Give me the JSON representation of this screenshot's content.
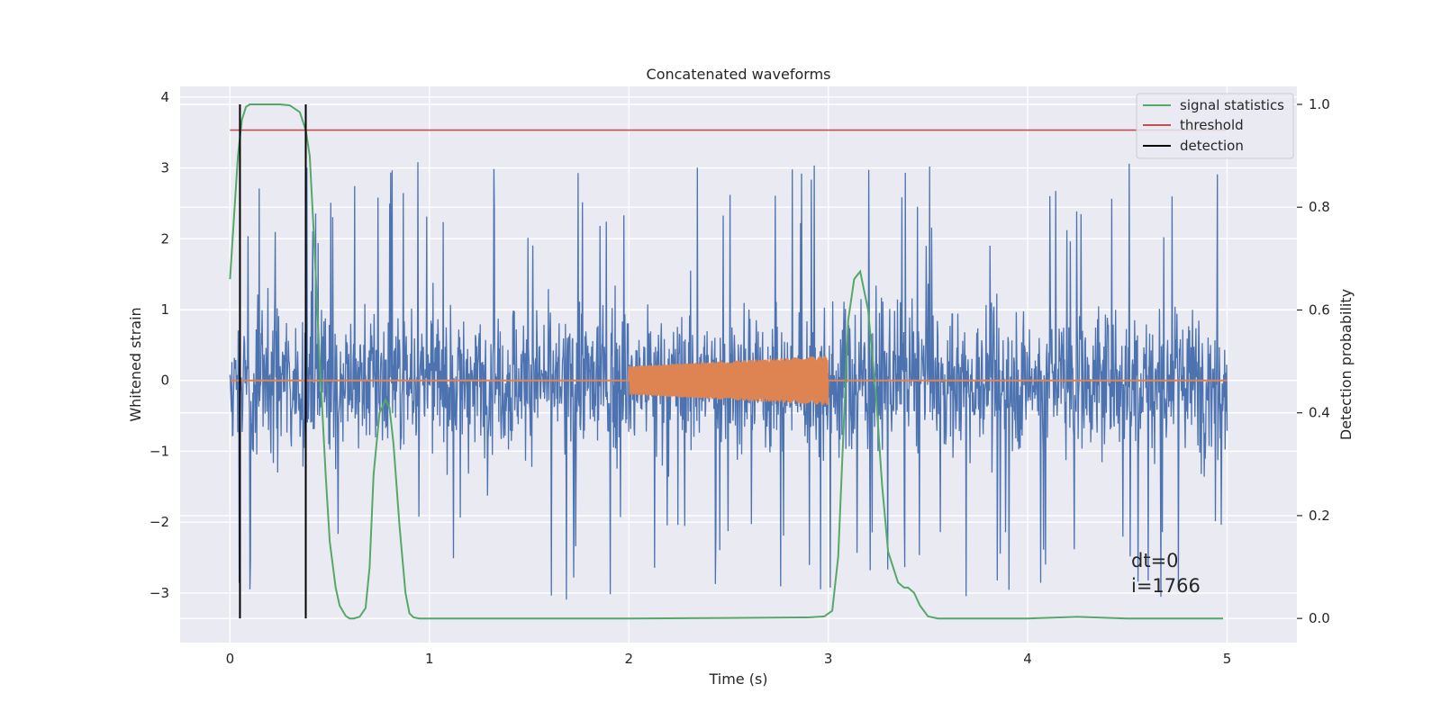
{
  "chart_data": {
    "type": "line",
    "title": "Concatenated waveforms",
    "xlabel": "Time (s)",
    "ylabel": "Whitened strain",
    "ylabel_right": "Detection probability",
    "xlim": [
      -0.25,
      5.35
    ],
    "ylim": [
      -3.7,
      4.15
    ],
    "ylim_right": [
      -0.047,
      1.035
    ],
    "x_ticks": [
      0,
      1,
      2,
      3,
      4,
      5
    ],
    "x_tick_labels": [
      "0",
      "1",
      "2",
      "3",
      "4",
      "5"
    ],
    "y_ticks": [
      -3,
      -2,
      -1,
      0,
      1,
      2,
      3,
      4
    ],
    "y_tick_labels": [
      "−3",
      "−2",
      "−1",
      "0",
      "1",
      "2",
      "3",
      "4"
    ],
    "y_right_ticks": [
      0.0,
      0.2,
      0.4,
      0.6,
      0.8,
      1.0
    ],
    "y_right_tick_labels": [
      "0.0",
      "0.2",
      "0.4",
      "0.6",
      "0.8",
      "1.0"
    ],
    "grid": true,
    "legend_position": "top-right",
    "annotation": [
      "dt=0",
      "i=1766"
    ],
    "series": [
      {
        "name": "",
        "axis": "left",
        "color": "#4c72b0",
        "kind": "noise",
        "x_range": [
          0,
          5
        ],
        "samples": 2048,
        "typical_range": [
          -1.3,
          1.3
        ],
        "extreme_range": [
          -3.3,
          3.7
        ]
      },
      {
        "name": "",
        "axis": "left",
        "color": "#dd8452",
        "kind": "chirp",
        "baseline_x": [
          0,
          5
        ],
        "baseline_y": 0,
        "chirp_x": [
          2,
          3
        ],
        "chirp_amplitude_start": 0.2,
        "chirp_amplitude_end": 0.35
      },
      {
        "name": "signal statistics",
        "axis": "right",
        "color": "#55a868",
        "x": [
          0.0,
          0.02,
          0.04,
          0.06,
          0.08,
          0.1,
          0.15,
          0.2,
          0.25,
          0.3,
          0.35,
          0.38,
          0.4,
          0.42,
          0.45,
          0.48,
          0.5,
          0.53,
          0.55,
          0.58,
          0.6,
          0.62,
          0.65,
          0.68,
          0.7,
          0.72,
          0.75,
          0.78,
          0.8,
          0.82,
          0.85,
          0.88,
          0.9,
          0.92,
          0.95,
          1.0,
          1.5,
          2.0,
          2.5,
          2.9,
          2.98,
          3.02,
          3.05,
          3.08,
          3.1,
          3.13,
          3.16,
          3.2,
          3.24,
          3.27,
          3.3,
          3.35,
          3.38,
          3.4,
          3.43,
          3.46,
          3.5,
          3.55,
          4.0,
          4.25,
          4.5,
          4.98
        ],
        "values": [
          0.66,
          0.78,
          0.9,
          0.97,
          0.995,
          1.0,
          1.0,
          1.0,
          1.0,
          0.998,
          0.985,
          0.95,
          0.9,
          0.75,
          0.5,
          0.28,
          0.15,
          0.06,
          0.025,
          0.005,
          0.0,
          0.0,
          0.003,
          0.02,
          0.1,
          0.28,
          0.4,
          0.425,
          0.41,
          0.34,
          0.18,
          0.05,
          0.01,
          0.002,
          0.0,
          0.0,
          0.0,
          0.0,
          0.001,
          0.002,
          0.004,
          0.015,
          0.12,
          0.4,
          0.58,
          0.66,
          0.675,
          0.6,
          0.43,
          0.26,
          0.13,
          0.07,
          0.06,
          0.06,
          0.05,
          0.025,
          0.004,
          0.0,
          0.0,
          0.003,
          0.0,
          0.0
        ]
      },
      {
        "name": "threshold",
        "axis": "right",
        "color": "#c44e52",
        "x": [
          0,
          5
        ],
        "values": [
          0.95,
          0.95
        ]
      },
      {
        "name": "detection",
        "axis": "right",
        "color": "#000000",
        "vlines_x": [
          0.05,
          0.38
        ],
        "vlines_y": [
          0.0,
          1.0
        ]
      }
    ]
  }
}
